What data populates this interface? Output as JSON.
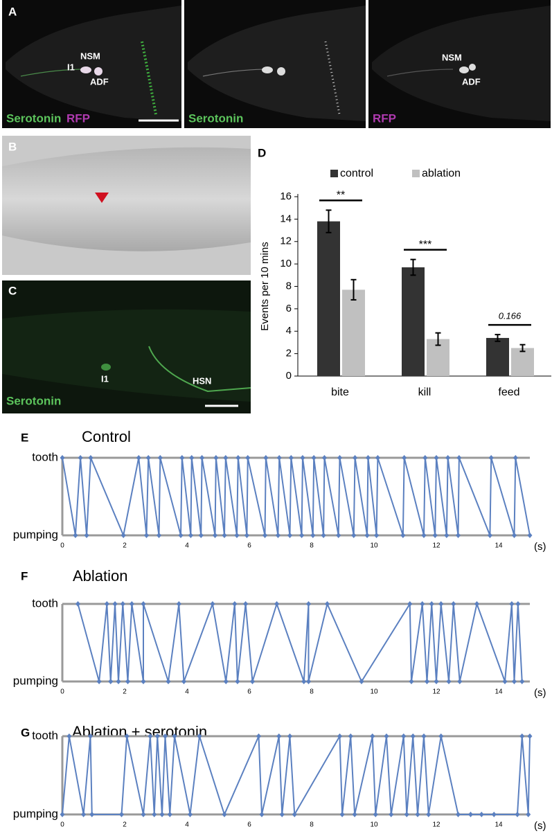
{
  "images": [
    {
      "letter": "A",
      "panels": [
        {
          "labels": [
            "NSM",
            "I1",
            "ADF"
          ],
          "caption": [
            "Serotonin",
            "RFP"
          ]
        },
        {
          "caption": [
            "Serotonin"
          ]
        },
        {
          "labels": [
            "NSM",
            "ADF"
          ],
          "caption": [
            "RFP"
          ]
        }
      ]
    },
    {
      "letter": "B"
    },
    {
      "letter": "C",
      "labels": [
        "I1",
        "HSN"
      ],
      "caption": [
        "Serotonin"
      ]
    }
  ],
  "chart_data": [
    {
      "type": "bar",
      "panel": "D",
      "categories": [
        "bite",
        "kill",
        "feed"
      ],
      "series": [
        {
          "name": "control",
          "color": "#333333",
          "values": [
            13.8,
            9.7,
            3.4
          ],
          "errors": [
            1.0,
            0.7,
            0.3
          ]
        },
        {
          "name": "ablation",
          "color": "#c0c0c0",
          "values": [
            7.7,
            3.3,
            2.5
          ],
          "errors": [
            0.9,
            0.55,
            0.3
          ]
        }
      ],
      "significance": [
        "**",
        "***",
        "0.166"
      ],
      "ylabel": "Events per 10 mins",
      "ylim": [
        0,
        16
      ],
      "yticks": [
        0,
        2,
        4,
        6,
        8,
        10,
        12,
        14,
        16
      ]
    },
    {
      "type": "line",
      "panel": "E",
      "title": "Control",
      "xlabel": "(s)",
      "x": [
        0,
        0.42,
        0.58,
        0.78,
        0.91,
        1.96,
        2.45,
        2.7,
        2.76,
        3.1,
        3.14,
        3.8,
        3.84,
        4.12,
        4.15,
        4.45,
        4.48,
        4.9,
        4.93,
        5.2,
        5.24,
        5.6,
        5.64,
        5.92,
        5.95,
        6.5,
        6.53,
        6.92,
        6.96,
        7.3,
        7.34,
        7.68,
        7.71,
        8.04,
        8.07,
        8.38,
        8.41,
        8.86,
        8.9,
        9.35,
        9.39,
        9.78,
        9.81,
        10.08,
        10.12,
        10.93,
        10.97,
        11.6,
        11.64,
        11.96,
        12.0,
        12.33,
        12.37,
        12.7,
        12.73,
        13.72,
        13.76,
        14.5,
        14.54,
        15.0
      ],
      "series": [
        {
          "color": "#5b80c0",
          "values": [
            1,
            0,
            1,
            0,
            1,
            0,
            1,
            0,
            1,
            0,
            1,
            0,
            1,
            0,
            1,
            0,
            1,
            0,
            1,
            0,
            1,
            0,
            1,
            0,
            1,
            0,
            1,
            0,
            1,
            0,
            1,
            0,
            1,
            0,
            1,
            0,
            1,
            0,
            1,
            0,
            1,
            0,
            1,
            0,
            1,
            0,
            1,
            0,
            1,
            0,
            1,
            0,
            1,
            0,
            1,
            0,
            1,
            0,
            1,
            0
          ]
        }
      ],
      "xlim": [
        0,
        15
      ],
      "xticks": [
        0,
        2,
        4,
        6,
        8,
        10,
        12,
        14
      ],
      "ylim": [
        0,
        1
      ],
      "yticks": [
        {
          "value": 1,
          "label": "tooth"
        },
        {
          "value": 0,
          "label": "pumping"
        }
      ]
    },
    {
      "type": "line",
      "panel": "F",
      "title": "Ablation",
      "xlabel": "(s)",
      "x": [
        0.5,
        1.18,
        1.43,
        1.55,
        1.69,
        1.8,
        1.94,
        2.1,
        2.23,
        2.6,
        2.6,
        3.4,
        3.74,
        3.9,
        4.82,
        5.25,
        5.53,
        5.62,
        5.88,
        6.1,
        6.88,
        7.75,
        7.9,
        7.9,
        8.5,
        9.6,
        11.15,
        11.2,
        11.55,
        11.7,
        11.85,
        12.0,
        12.15,
        12.4,
        12.55,
        12.75,
        13.3,
        14.2,
        14.42,
        14.5,
        14.62,
        14.75
      ],
      "series": [
        {
          "color": "#5b80c0",
          "values": [
            1,
            0,
            1,
            0,
            1,
            0,
            1,
            0,
            1,
            0,
            1,
            0,
            1,
            0,
            1,
            0,
            1,
            0,
            1,
            0,
            1,
            0,
            1,
            0,
            1,
            0,
            1,
            0,
            1,
            0,
            1,
            0,
            1,
            0,
            1,
            0,
            1,
            0,
            1,
            0,
            1,
            0
          ]
        }
      ],
      "xlim": [
        0,
        15
      ],
      "xticks": [
        0,
        2,
        4,
        6,
        8,
        10,
        12,
        14
      ],
      "ylim": [
        0,
        1
      ],
      "yticks": [
        {
          "value": 1,
          "label": "tooth"
        },
        {
          "value": 0,
          "label": "pumping"
        }
      ]
    },
    {
      "type": "line",
      "panel": "G",
      "title": "Ablation + serotonin",
      "xlabel": "(s)",
      "x": [
        0,
        0.22,
        0.68,
        0.9,
        0.95,
        1.9,
        2.07,
        2.6,
        2.82,
        2.95,
        3.05,
        3.2,
        3.3,
        3.45,
        3.6,
        4.1,
        4.4,
        5.2,
        6.3,
        6.4,
        6.95,
        7.05,
        7.3,
        7.45,
        8.9,
        8.98,
        9.25,
        9.38,
        9.95,
        10.05,
        10.4,
        10.55,
        10.95,
        11.05,
        11.25,
        11.4,
        11.6,
        11.75,
        12.15,
        12.7,
        13.1,
        13.45,
        13.85,
        14.6,
        14.75,
        14.95,
        15.0
      ],
      "series": [
        {
          "color": "#5b80c0",
          "values": [
            0,
            1,
            0,
            1,
            0,
            0,
            1,
            0,
            1,
            0,
            1,
            0,
            1,
            0,
            1,
            0,
            1,
            0,
            1,
            0,
            1,
            0,
            1,
            0,
            1,
            0,
            1,
            0,
            1,
            0,
            1,
            0,
            1,
            0,
            1,
            0,
            1,
            0,
            1,
            0,
            0,
            0,
            0,
            0,
            1,
            0,
            1
          ]
        }
      ],
      "xlim": [
        0,
        15
      ],
      "xticks": [
        0,
        2,
        4,
        6,
        8,
        10,
        12,
        14
      ],
      "ylim": [
        0,
        1
      ],
      "yticks": [
        {
          "value": 1,
          "label": "tooth"
        },
        {
          "value": 0,
          "label": "pumping"
        }
      ]
    }
  ]
}
